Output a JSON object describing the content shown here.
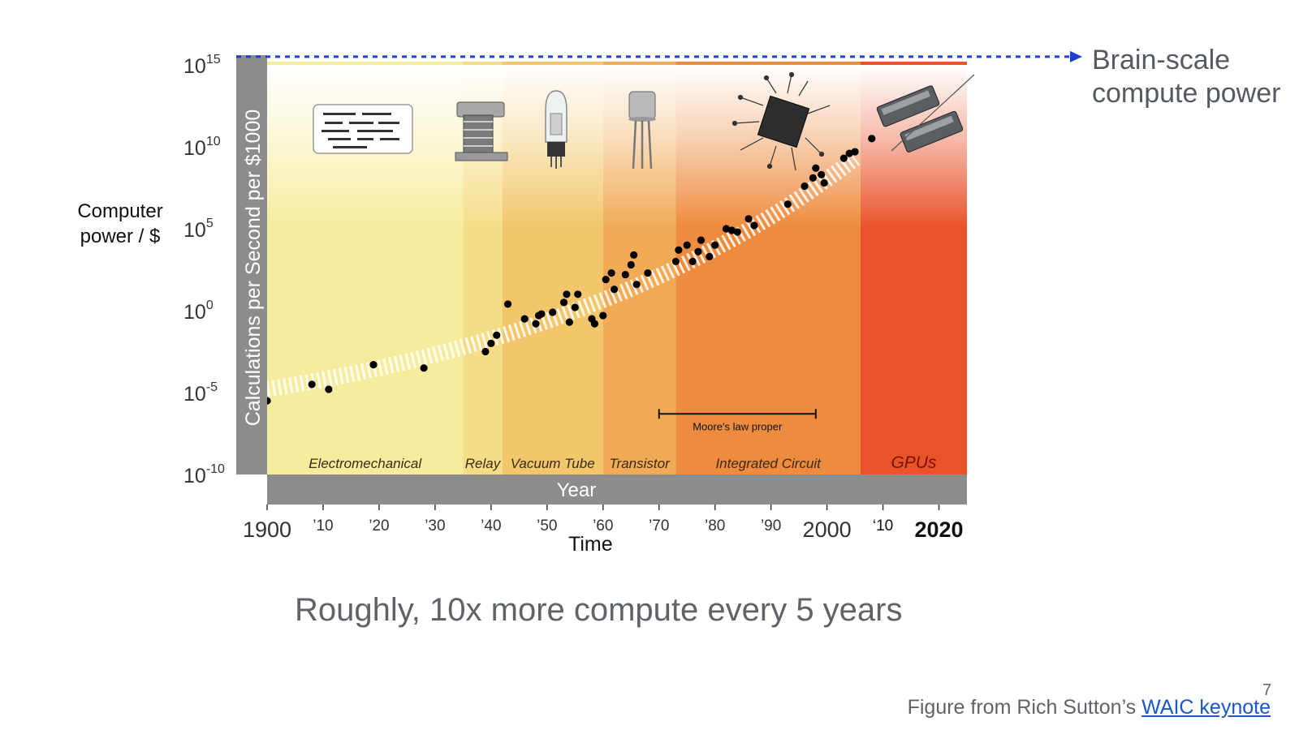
{
  "slide": {
    "brain_label_line1": "Brain-scale",
    "brain_label_line2": "compute power",
    "left_label_line1": "Computer",
    "left_label_line2": "power / $",
    "time_label": "Time",
    "caption": "Roughly, 10x more compute every 5 years",
    "footer_prefix": "Figure from Rich Sutton’s ",
    "footer_link": "WAIC keynote",
    "page_number": "7"
  },
  "colors": {
    "brain_arrow": "#1f3fd6",
    "axis_bar": "#8c8c8c",
    "points": "#000000",
    "link": "#1a56c4"
  },
  "chart_data": {
    "type": "scatter",
    "y_scale": "log10",
    "ylabel": "Calculations per Second per $1000",
    "xlabel": "Year",
    "xlim": [
      1900,
      2025
    ],
    "ylim": [
      -10,
      15
    ],
    "y_ticks": [
      {
        "base": "10",
        "exp": "15",
        "value": 15
      },
      {
        "base": "10",
        "exp": "10",
        "value": 10
      },
      {
        "base": "10",
        "exp": "5",
        "value": 5
      },
      {
        "base": "10",
        "exp": "0",
        "value": 0
      },
      {
        "base": "10",
        "exp": "-5",
        "value": -5
      },
      {
        "base": "10",
        "exp": "-10",
        "value": -10
      }
    ],
    "x_ticks": [
      {
        "label": "1900",
        "value": 1900,
        "big": true
      },
      {
        "label": "’10",
        "value": 1910,
        "big": false
      },
      {
        "label": "’20",
        "value": 1920,
        "big": false
      },
      {
        "label": "’30",
        "value": 1930,
        "big": false
      },
      {
        "label": "’40",
        "value": 1940,
        "big": false
      },
      {
        "label": "’50",
        "value": 1950,
        "big": false
      },
      {
        "label": "’60",
        "value": 1960,
        "big": false
      },
      {
        "label": "’70",
        "value": 1970,
        "big": false
      },
      {
        "label": "’80",
        "value": 1980,
        "big": false
      },
      {
        "label": "’90",
        "value": 1990,
        "big": false
      },
      {
        "label": "2000",
        "value": 2000,
        "big": true
      },
      {
        "label": "‘10",
        "value": 2010,
        "big": false
      },
      {
        "label": "2020",
        "value": 2020,
        "big": true
      }
    ],
    "eras": [
      {
        "label": "Electromechanical",
        "start": 1900,
        "end": 1935,
        "color": "#f6ec9d"
      },
      {
        "label": "Relay",
        "start": 1935,
        "end": 1942,
        "color": "#f5dd88"
      },
      {
        "label": "Vacuum Tube",
        "start": 1942,
        "end": 1960,
        "color": "#f2c66a"
      },
      {
        "label": "Transistor",
        "start": 1960,
        "end": 1973,
        "color": "#f1aa55"
      },
      {
        "label": "Integrated Circuit",
        "start": 1973,
        "end": 2006,
        "color": "#ee8b3e"
      },
      {
        "label": "GPUs",
        "start": 2006,
        "end": 2025,
        "color": "#e8532a"
      }
    ],
    "annotation": {
      "label": "Moore's law proper",
      "start": 1970,
      "end": 1998,
      "y": -6.3
    },
    "brain_scale_y": 15.5,
    "trend": {
      "start": [
        1900,
        -4.8
      ],
      "end": [
        2005,
        9.3
      ]
    },
    "points": [
      {
        "x": 1900,
        "y": -5.5
      },
      {
        "x": 1908,
        "y": -4.5
      },
      {
        "x": 1911,
        "y": -4.8
      },
      {
        "x": 1919,
        "y": -3.3
      },
      {
        "x": 1928,
        "y": -3.5
      },
      {
        "x": 1939,
        "y": -2.5
      },
      {
        "x": 1940,
        "y": -2.0
      },
      {
        "x": 1941,
        "y": -1.5
      },
      {
        "x": 1943,
        "y": 0.4
      },
      {
        "x": 1946,
        "y": -0.5
      },
      {
        "x": 1948,
        "y": -0.8
      },
      {
        "x": 1948.5,
        "y": -0.3
      },
      {
        "x": 1949,
        "y": -0.2
      },
      {
        "x": 1951,
        "y": -0.1
      },
      {
        "x": 1953,
        "y": 0.5
      },
      {
        "x": 1953.5,
        "y": 1.0
      },
      {
        "x": 1954,
        "y": -0.7
      },
      {
        "x": 1955,
        "y": 0.2
      },
      {
        "x": 1955.5,
        "y": 1.0
      },
      {
        "x": 1958,
        "y": -0.5
      },
      {
        "x": 1958.5,
        "y": -0.8
      },
      {
        "x": 1960,
        "y": -0.3
      },
      {
        "x": 1960.5,
        "y": 1.9
      },
      {
        "x": 1961.5,
        "y": 2.3
      },
      {
        "x": 1962,
        "y": 1.3
      },
      {
        "x": 1964,
        "y": 2.2
      },
      {
        "x": 1965,
        "y": 2.8
      },
      {
        "x": 1965.5,
        "y": 3.4
      },
      {
        "x": 1966,
        "y": 1.6
      },
      {
        "x": 1968,
        "y": 2.3
      },
      {
        "x": 1973,
        "y": 3.0
      },
      {
        "x": 1973.5,
        "y": 3.7
      },
      {
        "x": 1975,
        "y": 4.0
      },
      {
        "x": 1976,
        "y": 3.0
      },
      {
        "x": 1977,
        "y": 3.6
      },
      {
        "x": 1977.5,
        "y": 4.3
      },
      {
        "x": 1979,
        "y": 3.3
      },
      {
        "x": 1980,
        "y": 4.0
      },
      {
        "x": 1982,
        "y": 5.0
      },
      {
        "x": 1983,
        "y": 4.9
      },
      {
        "x": 1984,
        "y": 4.8
      },
      {
        "x": 1986,
        "y": 5.6
      },
      {
        "x": 1987,
        "y": 5.2
      },
      {
        "x": 1993,
        "y": 6.5
      },
      {
        "x": 1996,
        "y": 7.6
      },
      {
        "x": 1997.5,
        "y": 8.1
      },
      {
        "x": 1998,
        "y": 8.7
      },
      {
        "x": 1999,
        "y": 8.3
      },
      {
        "x": 1999.5,
        "y": 7.8
      },
      {
        "x": 2003,
        "y": 9.3
      },
      {
        "x": 2004,
        "y": 9.6
      },
      {
        "x": 2005,
        "y": 9.7
      },
      {
        "x": 2008,
        "y": 10.5
      }
    ]
  }
}
